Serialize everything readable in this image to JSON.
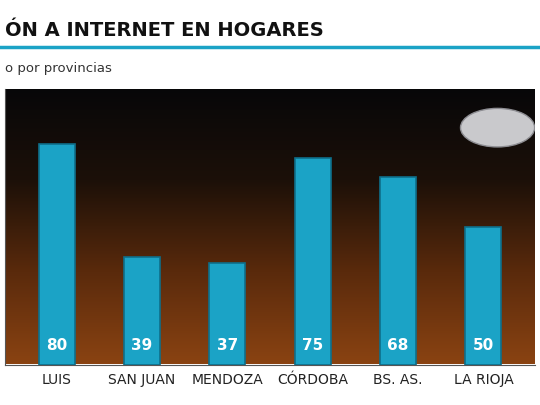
{
  "chart_data": {
    "type": "bar",
    "title": "ÓN A INTERNET EN HOGARES",
    "subtitle": "o por provincias",
    "categories": [
      "LUIS",
      "SAN JUAN",
      "MENDOZA",
      "CÓRDOBA",
      "BS. AS.",
      "LA RIOJA"
    ],
    "values": [
      80,
      39,
      37,
      75,
      68,
      50
    ],
    "color": "#1ba3c6",
    "ylim": [
      0,
      100
    ],
    "data_labels": true,
    "tick_labels": "x",
    "grid": false
  }
}
